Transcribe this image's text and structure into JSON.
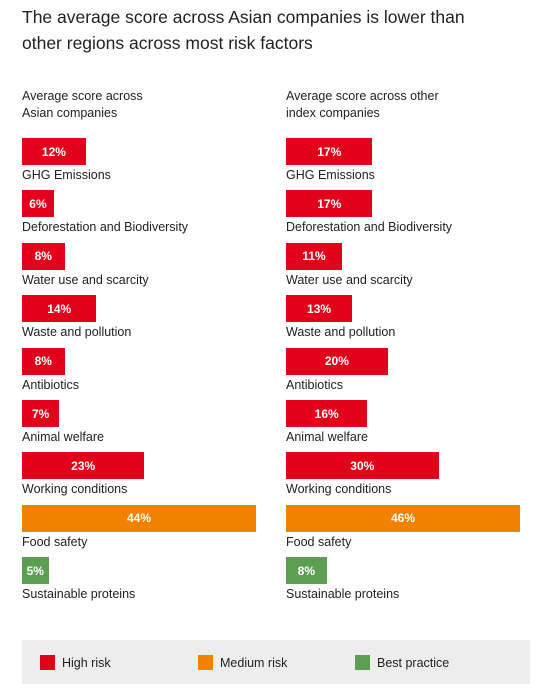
{
  "title_line1": "The average score across Asian companies is lower than",
  "title_line2": "other regions across most risk factors",
  "colors": {
    "high": "#e2001a",
    "medium": "#f08200",
    "best": "#5aa050"
  },
  "chart_data": [
    {
      "type": "bar",
      "header_line1": "Average score across",
      "header_line2": "Asian companies",
      "xlim": [
        0,
        44
      ],
      "categories": [
        "GHG Emissions",
        "Deforestation and Biodiversity",
        "Water use and scarcity",
        "Waste and pollution",
        "Antibiotics",
        "Animal welfare",
        "Working conditions",
        "Food safety",
        "Sustainable proteins"
      ],
      "values": [
        12,
        6,
        8,
        14,
        8,
        7,
        23,
        44,
        5
      ],
      "labels": [
        "12%",
        "6%",
        "8%",
        "14%",
        "8%",
        "7%",
        "23%",
        "44%",
        "5%"
      ],
      "risk": [
        "high",
        "high",
        "high",
        "high",
        "high",
        "high",
        "high",
        "medium",
        "best"
      ]
    },
    {
      "type": "bar",
      "header_line1": "Average score across other",
      "header_line2": "index companies",
      "xlim": [
        0,
        46
      ],
      "categories": [
        "GHG Emissions",
        "Deforestation and Biodiversity",
        "Water use and scarcity",
        "Waste and pollution",
        "Antibiotics",
        "Animal welfare",
        "Working conditions",
        "Food safety",
        "Sustainable proteins"
      ],
      "values": [
        17,
        17,
        11,
        13,
        20,
        16,
        30,
        46,
        8
      ],
      "labels": [
        "17%",
        "17%",
        "11%",
        "13%",
        "20%",
        "16%",
        "30%",
        "46%",
        "8%"
      ],
      "risk": [
        "high",
        "high",
        "high",
        "high",
        "high",
        "high",
        "high",
        "medium",
        "best"
      ]
    }
  ],
  "legend": [
    {
      "key": "high",
      "label": "High risk"
    },
    {
      "key": "medium",
      "label": "Medium risk"
    },
    {
      "key": "best",
      "label": "Best practice"
    }
  ]
}
